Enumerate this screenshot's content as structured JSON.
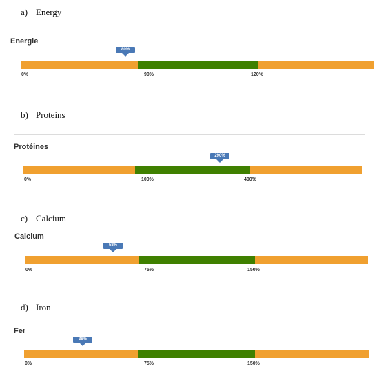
{
  "sections": [
    {
      "caption_letter": "a)",
      "caption_title": "Energy",
      "gauge_label": "Energie",
      "marker_value": "80%",
      "ticks": [
        "0%",
        "90%",
        "120%"
      ]
    },
    {
      "caption_letter": "b)",
      "caption_title": "Proteins",
      "gauge_label": "Protéines",
      "marker_value": "290%",
      "ticks": [
        "0%",
        "100%",
        "400%"
      ]
    },
    {
      "caption_letter": "c)",
      "caption_title": "Calcium",
      "gauge_label": "Calcium",
      "marker_value": "58%",
      "ticks": [
        "0%",
        "75%",
        "150%"
      ]
    },
    {
      "caption_letter": "d)",
      "caption_title": "Iron",
      "gauge_label": "Fer",
      "marker_value": "38%",
      "ticks": [
        "0%",
        "75%",
        "150%"
      ]
    }
  ],
  "colors": {
    "bar_out_of_range": "#f0a030",
    "bar_target_range": "#3f8000",
    "marker": "#4a79b6"
  }
}
